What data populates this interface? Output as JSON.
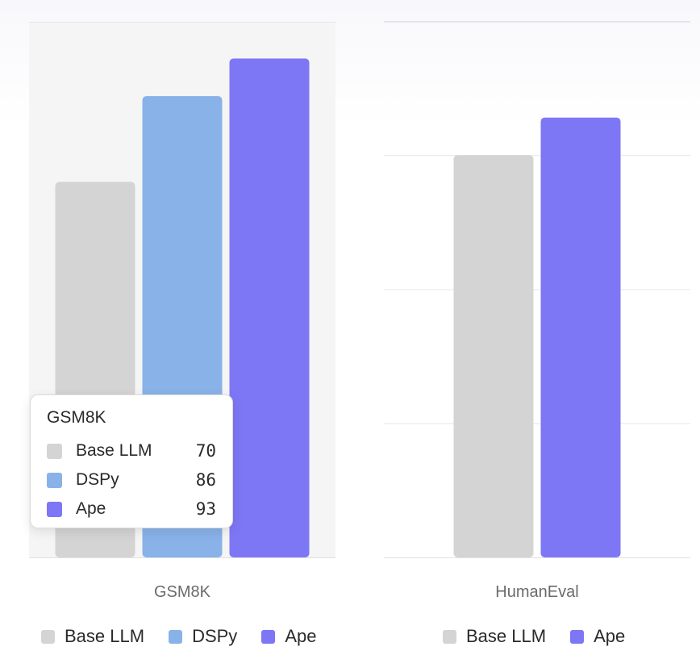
{
  "colors": {
    "base_llm": "#d4d4d4",
    "dspy": "#89b2e8",
    "ape": "#7d77f5",
    "grid": "#e4e4ee",
    "hover_band": "#f5f5f5"
  },
  "chart_data": [
    {
      "type": "bar",
      "categories": [
        "GSM8K"
      ],
      "series": [
        {
          "name": "Base LLM",
          "values": [
            70
          ]
        },
        {
          "name": "DSPy",
          "values": [
            86
          ]
        },
        {
          "name": "Ape",
          "values": [
            93
          ]
        }
      ],
      "ylim": [
        0,
        100
      ],
      "grid": true,
      "legend_position": "bottom",
      "hovered": true
    },
    {
      "type": "bar",
      "categories": [
        "HumanEval"
      ],
      "series": [
        {
          "name": "Base LLM",
          "values": [
            75
          ]
        },
        {
          "name": "Ape",
          "values": [
            82
          ]
        }
      ],
      "ylim": [
        0,
        100
      ],
      "grid": true,
      "legend_position": "bottom"
    }
  ],
  "tooltip": {
    "title": "GSM8K",
    "rows": [
      {
        "label": "Base LLM",
        "value": "70"
      },
      {
        "label": "DSPy",
        "value": "86"
      },
      {
        "label": "Ape",
        "value": "93"
      }
    ]
  }
}
